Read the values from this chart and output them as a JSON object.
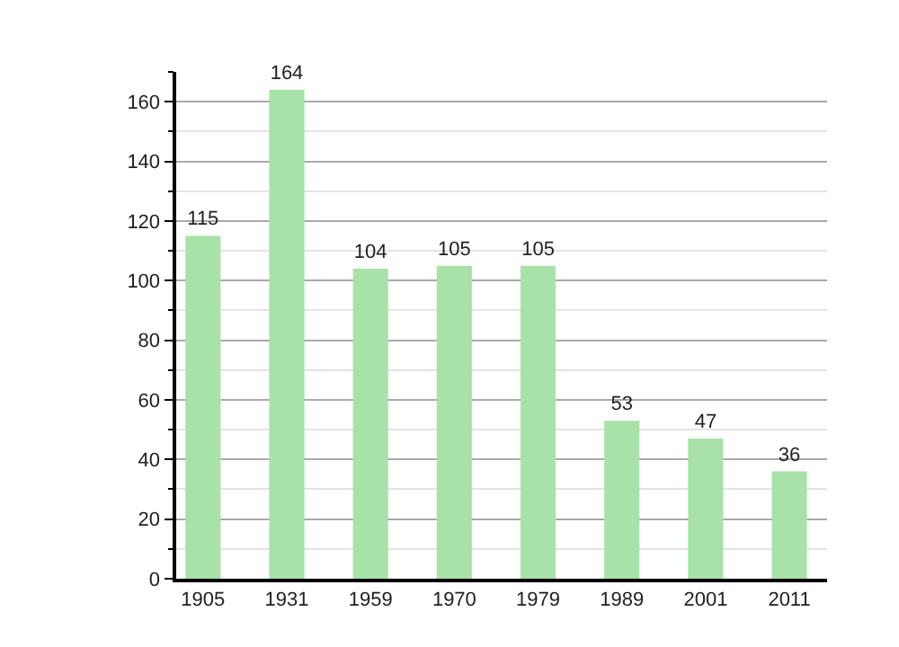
{
  "chart_data": {
    "type": "bar",
    "categories": [
      "1905",
      "1931",
      "1959",
      "1970",
      "1979",
      "1989",
      "2001",
      "2011"
    ],
    "values": [
      115,
      164,
      104,
      105,
      105,
      53,
      47,
      36
    ],
    "color": "#a8e2a8",
    "ylim": [
      0,
      170
    ],
    "yticks": [
      0,
      {
        "value": 10,
        "label": null
      },
      20,
      {
        "value": 30,
        "label": null
      },
      40,
      {
        "value": 50,
        "label": null
      },
      60,
      {
        "value": 70,
        "label": null
      },
      80,
      {
        "value": 90,
        "label": null
      },
      100,
      {
        "value": 110,
        "label": null
      },
      120,
      {
        "value": 130,
        "label": null
      },
      140,
      {
        "value": 150,
        "label": null
      },
      160,
      {
        "value": 170,
        "label": null
      }
    ],
    "grid": "y",
    "data_labels": true
  }
}
